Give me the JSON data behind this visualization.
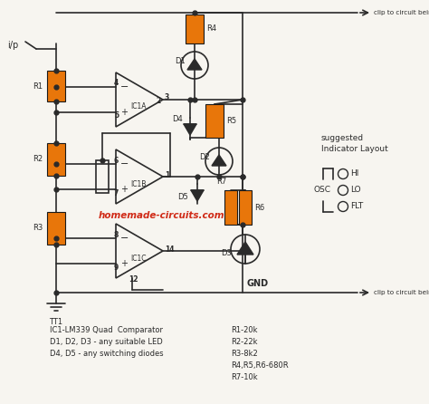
{
  "bg_color": "#f7f5f0",
  "line_color": "#2a2a2a",
  "orange_color": "#e8760a",
  "red_text_color": "#cc1500",
  "bottom_text_left": [
    "IC1-LM339 Quad  Comparator",
    "D1, D2, D3 - any suitable LED",
    "D4, D5 - any switching diodes"
  ],
  "bottom_text_right": [
    "R1-20k",
    "R2-22k",
    "R3-8k2",
    "R4,R5,R6-680R",
    "R7-10k"
  ],
  "watermark": "homemade-circuits.com",
  "top_label": "clip to circuit being probed",
  "bottom_label": "clip to circuit being probed",
  "gnd_label": "GND",
  "ip_label": "i/p",
  "tt1_label": "TT1",
  "indicator_title1": "suggested",
  "indicator_title2": "Indicator Layout"
}
